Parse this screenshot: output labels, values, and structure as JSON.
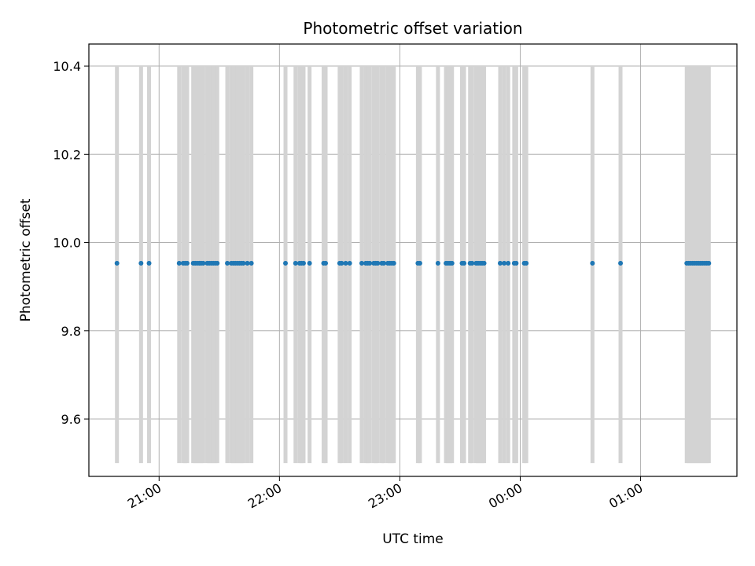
{
  "chart_data": {
    "type": "scatter",
    "title": "Photometric offset variation",
    "xlabel": "UTC time",
    "ylabel": "Photometric offset",
    "x_unit": "UTC clock time (HH:MM), axis spans from before 21:00 to past 01:00 next day",
    "xlim": [
      "20:25",
      "01:48"
    ],
    "ylim": [
      9.47,
      10.45
    ],
    "x_ticks": [
      "21:00",
      "22:00",
      "23:00",
      "00:00",
      "01:00"
    ],
    "y_ticks": [
      9.6,
      9.8,
      10.0,
      10.2,
      10.4
    ],
    "grid": true,
    "band": {
      "low": 9.5,
      "high": 10.4,
      "color": "#d3d3d3"
    },
    "point_color": "#1f77b4",
    "series": [
      {
        "y": 9.953,
        "x": [
          "20:39",
          "20:51",
          "20:55",
          "21:10",
          "21:12",
          "21:13",
          "21:14",
          "21:17",
          "21:18",
          "21:19",
          "21:20",
          "21:21",
          "21:22",
          "21:24",
          "21:25",
          "21:26",
          "21:27",
          "21:28",
          "21:29",
          "21:34",
          "21:36",
          "21:37",
          "21:38",
          "21:39",
          "21:40",
          "21:41",
          "21:42",
          "21:44",
          "21:46",
          "22:03",
          "22:08",
          "22:10",
          "22:11",
          "22:12",
          "22:15",
          "22:22",
          "22:23",
          "22:30",
          "22:31",
          "22:33",
          "22:35",
          "22:41",
          "22:43",
          "22:44",
          "22:45",
          "22:47",
          "22:48",
          "22:49",
          "22:51",
          "22:52",
          "22:54",
          "22:55",
          "22:56",
          "22:57",
          "23:09",
          "23:10",
          "23:19",
          "23:23",
          "23:24",
          "23:25",
          "23:26",
          "23:31",
          "23:32",
          "23:35",
          "23:36",
          "23:38",
          "23:39",
          "23:40",
          "23:41",
          "23:42",
          "23:50",
          "23:52",
          "23:54",
          "23:57",
          "23:58",
          "00:02",
          "00:03",
          "00:36",
          "00:50",
          "01:23",
          "01:24",
          "01:25",
          "01:26",
          "01:27",
          "01:28",
          "01:29",
          "01:30",
          "01:31",
          "01:32",
          "01:33",
          "01:34"
        ]
      }
    ]
  }
}
